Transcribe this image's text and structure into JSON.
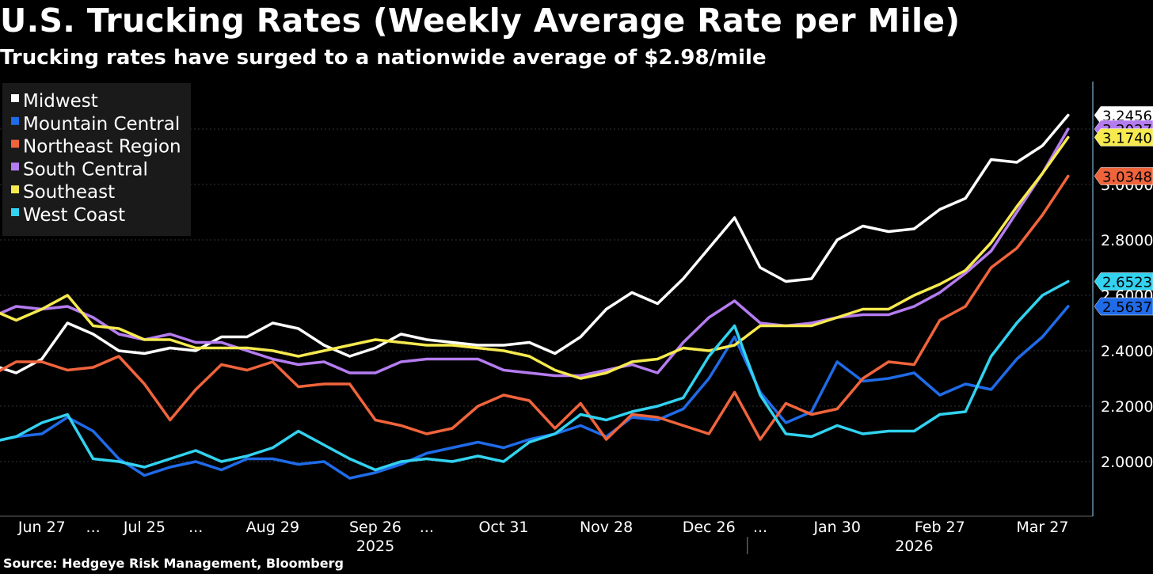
{
  "chart_data": {
    "type": "line",
    "title": "U.S. Trucking Rates (Weekly Average Rate per Mile)",
    "subtitle": "Trucking rates have surged to a nationwide average of $2.98/mile",
    "source": "Source: Hedgeye Risk Management, Bloomberg",
    "ylim": [
      1.8,
      3.4
    ],
    "yticks": [
      "2.0000",
      "2.2000",
      "2.4000",
      "2.6000",
      "2.8000",
      "3.0000",
      "3.2000"
    ],
    "ytick_values": [
      2.0,
      2.2,
      2.4,
      2.6,
      2.8,
      3.0,
      3.2
    ],
    "xtick_labels": [
      "Jun 27",
      "...",
      "Jul 25",
      "...",
      "Aug 29",
      "Sep 26",
      "...",
      "Oct 31",
      "Nov 28",
      "Dec 26",
      "...",
      "Jan 30",
      "Feb 27",
      "Mar 27"
    ],
    "xtick_weeks": [
      2,
      4,
      6,
      8,
      11,
      15,
      17,
      20,
      24,
      28,
      30,
      33,
      37,
      41
    ],
    "year_labels": [
      "2025",
      "2026"
    ],
    "year_weeks": [
      15,
      36
    ],
    "year_divider_week": 29.5,
    "legend_position": "top-left",
    "grid": true,
    "series": [
      {
        "name": "Midwest",
        "color": "#ffffff",
        "last_label": "3.2456",
        "values": [
          2.35,
          2.32,
          2.37,
          2.5,
          2.46,
          2.4,
          2.39,
          2.41,
          2.4,
          2.45,
          2.45,
          2.5,
          2.48,
          2.42,
          2.38,
          2.41,
          2.46,
          2.44,
          2.43,
          2.42,
          2.42,
          2.43,
          2.39,
          2.45,
          2.55,
          2.61,
          2.57,
          2.66,
          2.77,
          2.88,
          2.7,
          2.65,
          2.66,
          2.8,
          2.85,
          2.83,
          2.84,
          2.91,
          2.95,
          3.09,
          3.08,
          3.14,
          3.25
        ]
      },
      {
        "name": "Mountain Central",
        "color": "#1f6be8",
        "last_label": "2.5637",
        "values": [
          2.07,
          2.09,
          2.1,
          2.16,
          2.11,
          2.01,
          1.95,
          1.98,
          2.0,
          1.97,
          2.01,
          2.01,
          1.99,
          2.0,
          1.94,
          1.96,
          1.99,
          2.03,
          2.05,
          2.07,
          2.05,
          2.08,
          2.1,
          2.13,
          2.09,
          2.16,
          2.15,
          2.19,
          2.3,
          2.45,
          2.25,
          2.14,
          2.18,
          2.36,
          2.29,
          2.3,
          2.32,
          2.24,
          2.28,
          2.26,
          2.37,
          2.45,
          2.56
        ]
      },
      {
        "name": "Northeast Region",
        "color": "#f0643c",
        "last_label": "3.0348",
        "values": [
          2.31,
          2.36,
          2.36,
          2.33,
          2.34,
          2.38,
          2.28,
          2.15,
          2.26,
          2.35,
          2.33,
          2.36,
          2.27,
          2.28,
          2.28,
          2.15,
          2.13,
          2.1,
          2.12,
          2.2,
          2.24,
          2.22,
          2.12,
          2.21,
          2.08,
          2.17,
          2.16,
          2.13,
          2.1,
          2.25,
          2.08,
          2.21,
          2.17,
          2.19,
          2.3,
          2.36,
          2.35,
          2.51,
          2.56,
          2.7,
          2.77,
          2.89,
          3.03
        ]
      },
      {
        "name": "South Central",
        "color": "#b57cf0",
        "last_label": "3.2027",
        "values": [
          2.52,
          2.56,
          2.55,
          2.56,
          2.52,
          2.46,
          2.44,
          2.46,
          2.43,
          2.43,
          2.4,
          2.37,
          2.35,
          2.36,
          2.32,
          2.32,
          2.36,
          2.37,
          2.37,
          2.37,
          2.33,
          2.32,
          2.31,
          2.31,
          2.33,
          2.35,
          2.32,
          2.43,
          2.52,
          2.58,
          2.5,
          2.49,
          2.5,
          2.52,
          2.53,
          2.53,
          2.56,
          2.61,
          2.68,
          2.76,
          2.9,
          3.04,
          3.2
        ]
      },
      {
        "name": "Southeast",
        "color": "#f6ea4f",
        "last_label": "3.1740",
        "values": [
          2.55,
          2.51,
          2.55,
          2.6,
          2.49,
          2.48,
          2.44,
          2.44,
          2.41,
          2.41,
          2.41,
          2.4,
          2.38,
          2.4,
          2.42,
          2.44,
          2.43,
          2.42,
          2.42,
          2.41,
          2.4,
          2.38,
          2.33,
          2.3,
          2.32,
          2.36,
          2.37,
          2.41,
          2.4,
          2.42,
          2.49,
          2.49,
          2.49,
          2.52,
          2.55,
          2.55,
          2.6,
          2.64,
          2.69,
          2.79,
          2.92,
          3.04,
          3.17
        ]
      },
      {
        "name": "West Coast",
        "color": "#32d2f0",
        "last_label": "2.6523",
        "values": [
          2.07,
          2.09,
          2.14,
          2.17,
          2.01,
          2.0,
          1.98,
          2.01,
          2.04,
          2.0,
          2.02,
          2.05,
          2.11,
          2.06,
          2.01,
          1.97,
          2.0,
          2.01,
          2.0,
          2.02,
          2.0,
          2.07,
          2.1,
          2.17,
          2.15,
          2.18,
          2.2,
          2.23,
          2.38,
          2.49,
          2.24,
          2.1,
          2.09,
          2.13,
          2.1,
          2.11,
          2.11,
          2.17,
          2.18,
          2.38,
          2.5,
          2.6,
          2.65
        ]
      }
    ]
  }
}
